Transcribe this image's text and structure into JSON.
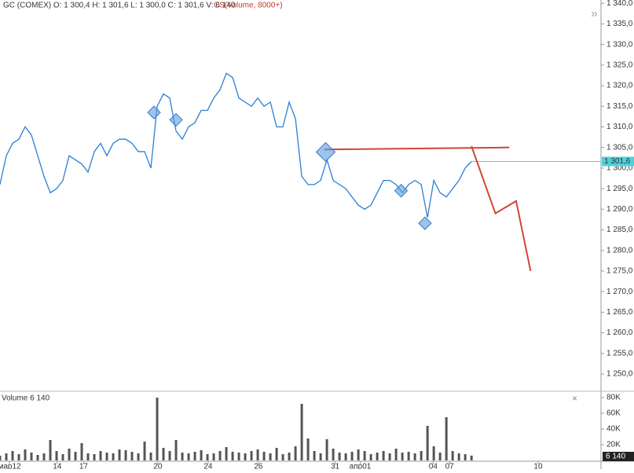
{
  "chart_data": {
    "type": "line",
    "header": {
      "symbol": "GC (COMEX) O: 1 300,4  H: 1 301,6  L: 1 300,0  C: 1 301,6  V: 6 140",
      "study": "CS(Volume, 8000+)"
    },
    "xlim": [
      0,
      95.6
    ],
    "xticks": [
      {
        "value": 1.5,
        "label": "мар12"
      },
      {
        "value": 9.1,
        "label": "14"
      },
      {
        "value": 13.3,
        "label": "17"
      },
      {
        "value": 25.1,
        "label": "20"
      },
      {
        "value": 33.1,
        "label": "24"
      },
      {
        "value": 41.1,
        "label": "26"
      },
      {
        "value": 53.3,
        "label": "31"
      },
      {
        "value": 57.3,
        "label": "апр01"
      },
      {
        "value": 68.9,
        "label": "04"
      },
      {
        "value": 71.5,
        "label": "07"
      },
      {
        "value": 85.6,
        "label": "10"
      }
    ],
    "ylim": [
      1246,
      1340.8
    ],
    "yticks": [
      {
        "value": 1250,
        "label": "1 250,0"
      },
      {
        "value": 1255,
        "label": "1 255,0"
      },
      {
        "value": 1260,
        "label": "1 260,0"
      },
      {
        "value": 1265,
        "label": "1 265,0"
      },
      {
        "value": 1270,
        "label": "1 270,0"
      },
      {
        "value": 1275,
        "label": "1 275,0"
      },
      {
        "value": 1280,
        "label": "1 280,0"
      },
      {
        "value": 1285,
        "label": "1 285,0"
      },
      {
        "value": 1290,
        "label": "1 290,0"
      },
      {
        "value": 1295,
        "label": "1 295,0"
      },
      {
        "value": 1300,
        "label": "1 300,0"
      },
      {
        "value": 1305,
        "label": "1 305,0"
      },
      {
        "value": 1310,
        "label": "1 310,0"
      },
      {
        "value": 1315,
        "label": "1 315,0"
      },
      {
        "value": 1320,
        "label": "1 320,0"
      },
      {
        "value": 1325,
        "label": "1 325,0"
      },
      {
        "value": 1330,
        "label": "1 330,0"
      },
      {
        "value": 1335,
        "label": "1 335,0"
      },
      {
        "value": 1340,
        "label": "1 340,0"
      }
    ],
    "series": [
      {
        "name": "GC",
        "color": "#2a7fd4",
        "values": [
          1296,
          1303,
          1306,
          1307,
          1310,
          1308,
          1303,
          1298,
          1294,
          1295,
          1297,
          1303,
          1302,
          1301,
          1299,
          1304,
          1306,
          1303,
          1306,
          1307,
          1307,
          1306,
          1304,
          1304,
          1300,
          1315,
          1318,
          1317,
          1309,
          1307,
          1310,
          1311,
          1314,
          1314,
          1317,
          1319,
          1323,
          1322,
          1317,
          1316,
          1315,
          1317,
          1315,
          1316,
          1310,
          1310,
          1316,
          1312,
          1298,
          1296,
          1296,
          1297,
          1302,
          1297,
          1296,
          1295,
          1293,
          1291,
          1290,
          1291,
          1294,
          1297,
          1297,
          1296,
          1294,
          1296,
          1297,
          1296,
          1288,
          1297,
          1294,
          1293,
          1295,
          1297,
          1300,
          1301.6
        ]
      }
    ],
    "last_price": {
      "value": 1301.6,
      "label": "1 301,6",
      "color": "#4fd1d9"
    },
    "signals": {
      "color": "#5b9be0",
      "x": [
        24.5,
        28,
        51.8,
        63.8,
        67.6
      ],
      "y": [
        1313.5,
        1311.7,
        1303.9,
        1294.5,
        1286.6
      ]
    },
    "drawings": [
      {
        "color": "#d0453a",
        "x": [
          51.6,
          81
        ],
        "y": [
          1304.5,
          1305
        ]
      },
      {
        "color": "#d0453a",
        "x": [
          75,
          78.8,
          82.1,
          84.4
        ],
        "y": [
          1305.3,
          1289,
          1292,
          1275
        ]
      }
    ],
    "volume": {
      "label": "Volume 6 140",
      "last": "6 140",
      "color": "#555555",
      "ylim": [
        0,
        86000
      ],
      "yticks": [
        {
          "value": 20000,
          "label": "20K"
        },
        {
          "value": 40000,
          "label": "40K"
        },
        {
          "value": 60000,
          "label": "60K"
        },
        {
          "value": 80000,
          "label": "80K"
        }
      ],
      "values": [
        6000,
        9000,
        12000,
        8000,
        14000,
        10000,
        7000,
        9000,
        26000,
        12000,
        8000,
        15000,
        11000,
        22000,
        9000,
        8000,
        12000,
        10000,
        9000,
        14000,
        13000,
        11000,
        9000,
        24000,
        10000,
        80000,
        16000,
        12000,
        26000,
        10000,
        9000,
        11000,
        13000,
        8000,
        9000,
        12000,
        17000,
        11000,
        10000,
        9000,
        12000,
        14000,
        11000,
        9000,
        16000,
        8000,
        10000,
        18000,
        72000,
        28000,
        12000,
        9000,
        27000,
        15000,
        10000,
        9000,
        11000,
        14000,
        12000,
        8000,
        10000,
        12000,
        9000,
        15000,
        10000,
        11000,
        9000,
        12000,
        44000,
        18000,
        10000,
        55000,
        12000,
        9000,
        8000,
        6140
      ]
    }
  }
}
